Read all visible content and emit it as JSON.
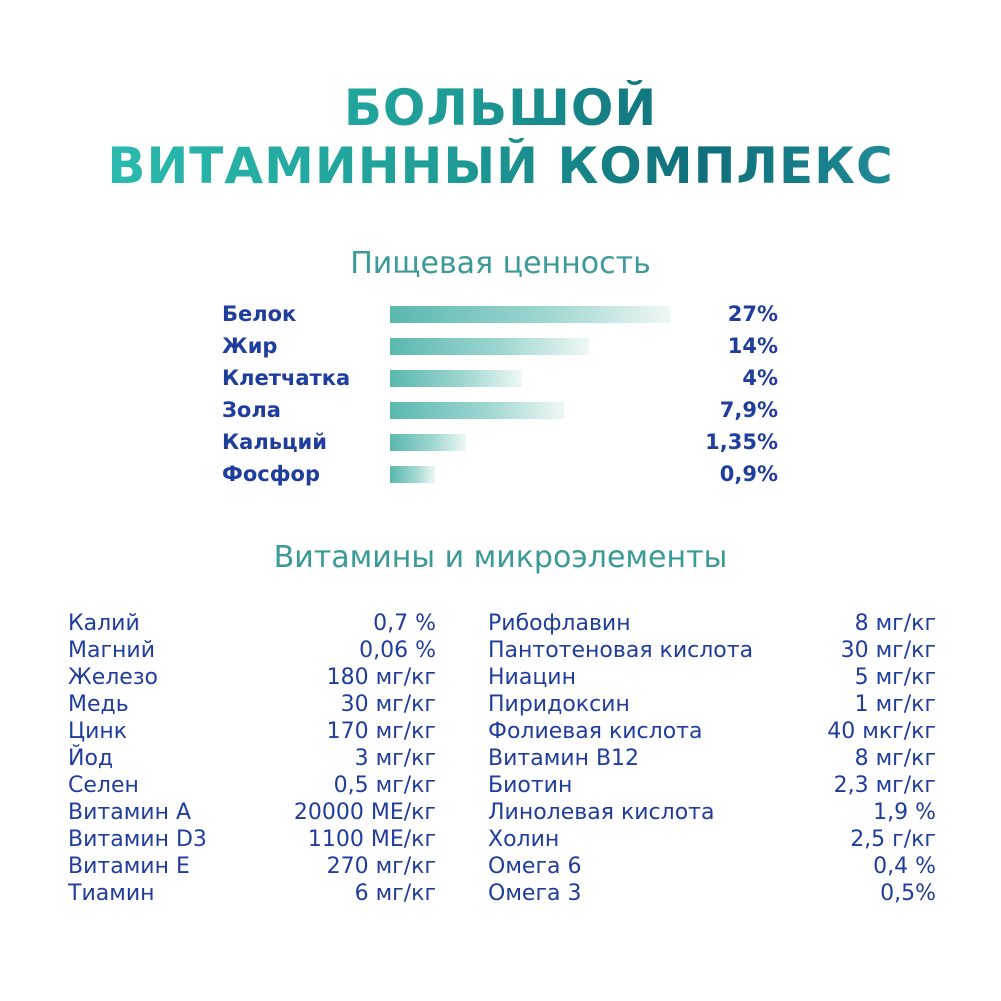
{
  "title": [
    "БОЛЬШОЙ",
    "ВИТАМИННЫЙ КОМПЛЕКС"
  ],
  "nutrition": {
    "heading": "Пищевая ценность",
    "items": [
      {
        "label": "Белок",
        "value_text": "27%"
      },
      {
        "label": "Жир",
        "value_text": "14%"
      },
      {
        "label": "Клетчатка",
        "value_text": "4%"
      },
      {
        "label": "Зола",
        "value_text": "7,9%"
      },
      {
        "label": "Кальций",
        "value_text": "1,35%"
      },
      {
        "label": "Фосфор",
        "value_text": "0,9%"
      }
    ]
  },
  "vitamins": {
    "heading": "Витамины и микроэлементы",
    "left": [
      {
        "name": "Калий",
        "amount": "0,7 %"
      },
      {
        "name": "Магний",
        "amount": "0,06 %"
      },
      {
        "name": "Железо",
        "amount": "180 мг/кг"
      },
      {
        "name": "Медь",
        "amount": "30 мг/кг"
      },
      {
        "name": "Цинк",
        "amount": "170 мг/кг"
      },
      {
        "name": "Йод",
        "amount": "3 мг/кг"
      },
      {
        "name": "Селен",
        "amount": "0,5 мг/кг"
      },
      {
        "name": "Витамин А",
        "amount": "20000 МЕ/кг"
      },
      {
        "name": "Витамин D3",
        "amount": "1100 МЕ/кг"
      },
      {
        "name": "Витамин Е",
        "amount": "270 мг/кг"
      },
      {
        "name": "Тиамин",
        "amount": "6 мг/кг"
      }
    ],
    "right": [
      {
        "name": "Рибофлавин",
        "amount": "8 мг/кг"
      },
      {
        "name": "Пантотеновая кислота",
        "amount": "30 мг/кг"
      },
      {
        "name": "Ниацин",
        "amount": "5 мг/кг"
      },
      {
        "name": "Пиридоксин",
        "amount": "1 мг/кг"
      },
      {
        "name": "Фолиевая кислота",
        "amount": "40 мкг/кг"
      },
      {
        "name": "Витамин В12",
        "amount": "8 мг/кг"
      },
      {
        "name": "Биотин",
        "amount": "2,3 мг/кг"
      },
      {
        "name": "Линолевая кислота",
        "amount": "1,9 %"
      },
      {
        "name": "Холин",
        "amount": "2,5 г/кг"
      },
      {
        "name": "Омега 6",
        "amount": "0,4 %"
      },
      {
        "name": "Омега 3",
        "amount": "0,5%"
      }
    ]
  },
  "chart_data": {
    "type": "bar",
    "orientation": "horizontal",
    "categories": [
      "Белок",
      "Жир",
      "Клетчатка",
      "Зола",
      "Кальций",
      "Фосфор"
    ],
    "values": [
      27,
      14,
      4,
      7.9,
      1.35,
      0.9
    ],
    "value_labels": [
      "27%",
      "14%",
      "4%",
      "7,9%",
      "1,35%",
      "0,9%"
    ],
    "bar_length_fraction": [
      1.0,
      0.71,
      0.47,
      0.62,
      0.27,
      0.16
    ],
    "bar_colors": [
      "#5ab8ae",
      "#eef7f6"
    ],
    "grid": false,
    "legend": "none"
  },
  "colors": {
    "label_blue": "#1f3d9c",
    "heading_teal": "#3a9a98",
    "title_gradient": [
      "#2ec4b6",
      "#0f6f7a"
    ]
  }
}
